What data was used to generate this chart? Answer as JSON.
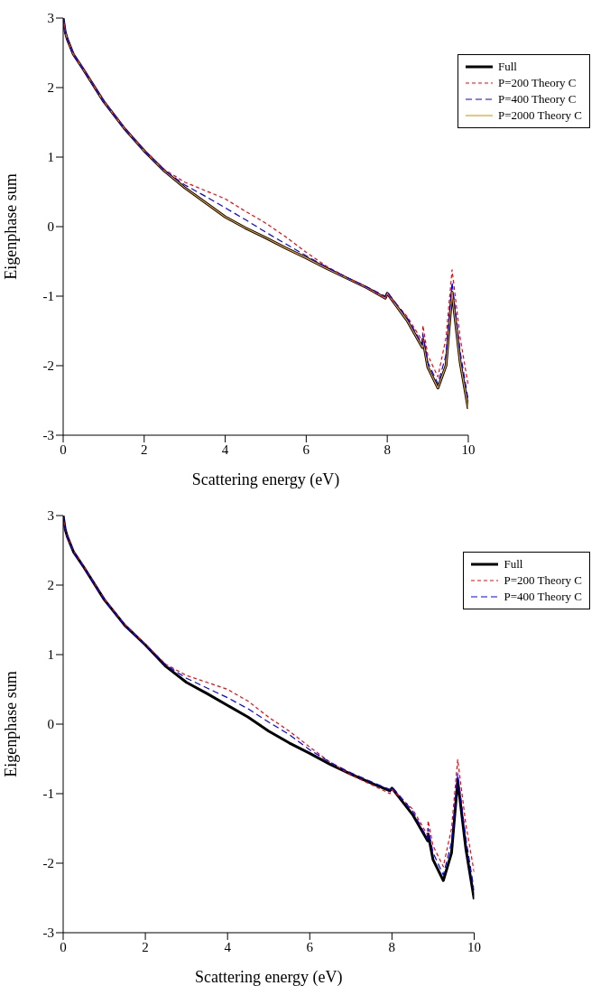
{
  "chart_data": [
    {
      "type": "line",
      "xlabel": "Scattering energy (eV)",
      "ylabel": "Eigenphase sum",
      "xlim": [
        0,
        10
      ],
      "xticks": [
        0,
        2,
        4,
        6,
        8,
        10
      ],
      "ylim": [
        -3,
        3
      ],
      "yticks": [
        -3,
        -2,
        -1,
        0,
        1,
        2,
        3
      ],
      "legend": "top right",
      "grid": false,
      "marker": "none",
      "x": [
        0,
        0.05,
        0.1,
        0.25,
        0.5,
        1,
        1.5,
        2,
        2.5,
        3,
        3.5,
        4,
        4.5,
        5,
        5.5,
        6,
        6.5,
        7,
        7.5,
        7.95,
        8,
        8.5,
        8.87,
        8.88,
        9,
        9.25,
        9.45,
        9.6,
        9.8,
        10
      ],
      "series": [
        {
          "name": "Full",
          "color": "#000000",
          "line_style": "solid",
          "values": [
            3,
            2.8,
            2.7,
            2.48,
            2.26,
            1.8,
            1.42,
            1.09,
            0.8,
            0.56,
            0.35,
            0.14,
            -0.02,
            -0.16,
            -0.31,
            -0.45,
            -0.6,
            -0.74,
            -0.88,
            -1.03,
            -0.96,
            -1.36,
            -1.74,
            -1.62,
            -2.02,
            -2.32,
            -2.0,
            -0.94,
            -1.95,
            -2.62
          ]
        },
        {
          "name": "P=200 Theory C",
          "color": "#ff0000",
          "line_style": "dashed",
          "values": [
            3,
            2.8,
            2.7,
            2.49,
            2.27,
            1.81,
            1.43,
            1.1,
            0.82,
            0.64,
            0.52,
            0.4,
            0.22,
            0.05,
            -0.15,
            -0.37,
            -0.57,
            -0.73,
            -0.87,
            -1.04,
            -0.97,
            -1.3,
            -1.65,
            -1.42,
            -1.85,
            -2.16,
            -1.6,
            -0.62,
            -1.6,
            -2.29
          ]
        },
        {
          "name": "P=400 Theory C",
          "color": "#0000ff",
          "line_style": "dashed",
          "values": [
            3,
            2.8,
            2.7,
            2.48,
            2.26,
            1.8,
            1.42,
            1.09,
            0.81,
            0.6,
            0.44,
            0.27,
            0.1,
            -0.08,
            -0.25,
            -0.42,
            -0.58,
            -0.73,
            -0.87,
            -1.0,
            -0.94,
            -1.32,
            -1.7,
            -1.55,
            -1.95,
            -2.26,
            -1.85,
            -0.8,
            -1.8,
            -2.5
          ]
        },
        {
          "name": "P=2000 Theory C",
          "color": "#e69b2e",
          "line_style": "solid",
          "values": [
            3,
            2.8,
            2.7,
            2.48,
            2.26,
            1.8,
            1.42,
            1.09,
            0.8,
            0.56,
            0.35,
            0.14,
            -0.02,
            -0.16,
            -0.31,
            -0.45,
            -0.6,
            -0.74,
            -0.88,
            -1.03,
            -0.96,
            -1.36,
            -1.74,
            -1.62,
            -2.02,
            -2.32,
            -2.0,
            -0.94,
            -1.95,
            -2.62
          ]
        }
      ]
    },
    {
      "type": "line",
      "xlabel": "Scattering energy (eV)",
      "ylabel": "Eigenphase sum",
      "xlim": [
        0,
        10
      ],
      "xticks": [
        0,
        2,
        4,
        6,
        8,
        10
      ],
      "ylim": [
        -3,
        3
      ],
      "yticks": [
        -3,
        -2,
        -1,
        0,
        1,
        2,
        3
      ],
      "legend": "top right",
      "grid": false,
      "marker": "none",
      "x": [
        0,
        0.05,
        0.1,
        0.25,
        0.5,
        1,
        1.5,
        2,
        2.5,
        3,
        3.5,
        4,
        4.5,
        5,
        5.5,
        6,
        6.5,
        7,
        7.5,
        7.95,
        8,
        8.5,
        8.87,
        8.88,
        9,
        9.25,
        9.45,
        9.6,
        9.8,
        10
      ],
      "series": [
        {
          "name": "Full",
          "color": "#000000",
          "line_style": "solid",
          "values": [
            3,
            2.8,
            2.7,
            2.48,
            2.26,
            1.79,
            1.42,
            1.14,
            0.83,
            0.6,
            0.44,
            0.27,
            0.1,
            -0.1,
            -0.27,
            -0.42,
            -0.58,
            -0.72,
            -0.85,
            -0.96,
            -0.92,
            -1.3,
            -1.68,
            -1.58,
            -1.95,
            -2.25,
            -1.85,
            -0.81,
            -1.8,
            -2.52
          ]
        },
        {
          "name": "P=200 Theory C",
          "color": "#ff0000",
          "line_style": "dashed",
          "values": [
            3,
            2.8,
            2.7,
            2.49,
            2.27,
            1.8,
            1.43,
            1.15,
            0.86,
            0.7,
            0.6,
            0.5,
            0.33,
            0.1,
            -0.1,
            -0.33,
            -0.55,
            -0.73,
            -0.87,
            -1.0,
            -0.94,
            -1.22,
            -1.6,
            -1.39,
            -1.75,
            -2.05,
            -1.5,
            -0.51,
            -1.45,
            -2.13
          ]
        },
        {
          "name": "P=400 Theory C",
          "color": "#0000ff",
          "line_style": "dashed",
          "values": [
            3,
            2.8,
            2.7,
            2.48,
            2.26,
            1.79,
            1.42,
            1.14,
            0.85,
            0.66,
            0.52,
            0.38,
            0.22,
            0.03,
            -0.15,
            -0.37,
            -0.55,
            -0.7,
            -0.83,
            -0.94,
            -0.9,
            -1.25,
            -1.65,
            -1.5,
            -1.85,
            -2.17,
            -1.7,
            -0.71,
            -1.65,
            -2.39
          ]
        }
      ]
    }
  ]
}
